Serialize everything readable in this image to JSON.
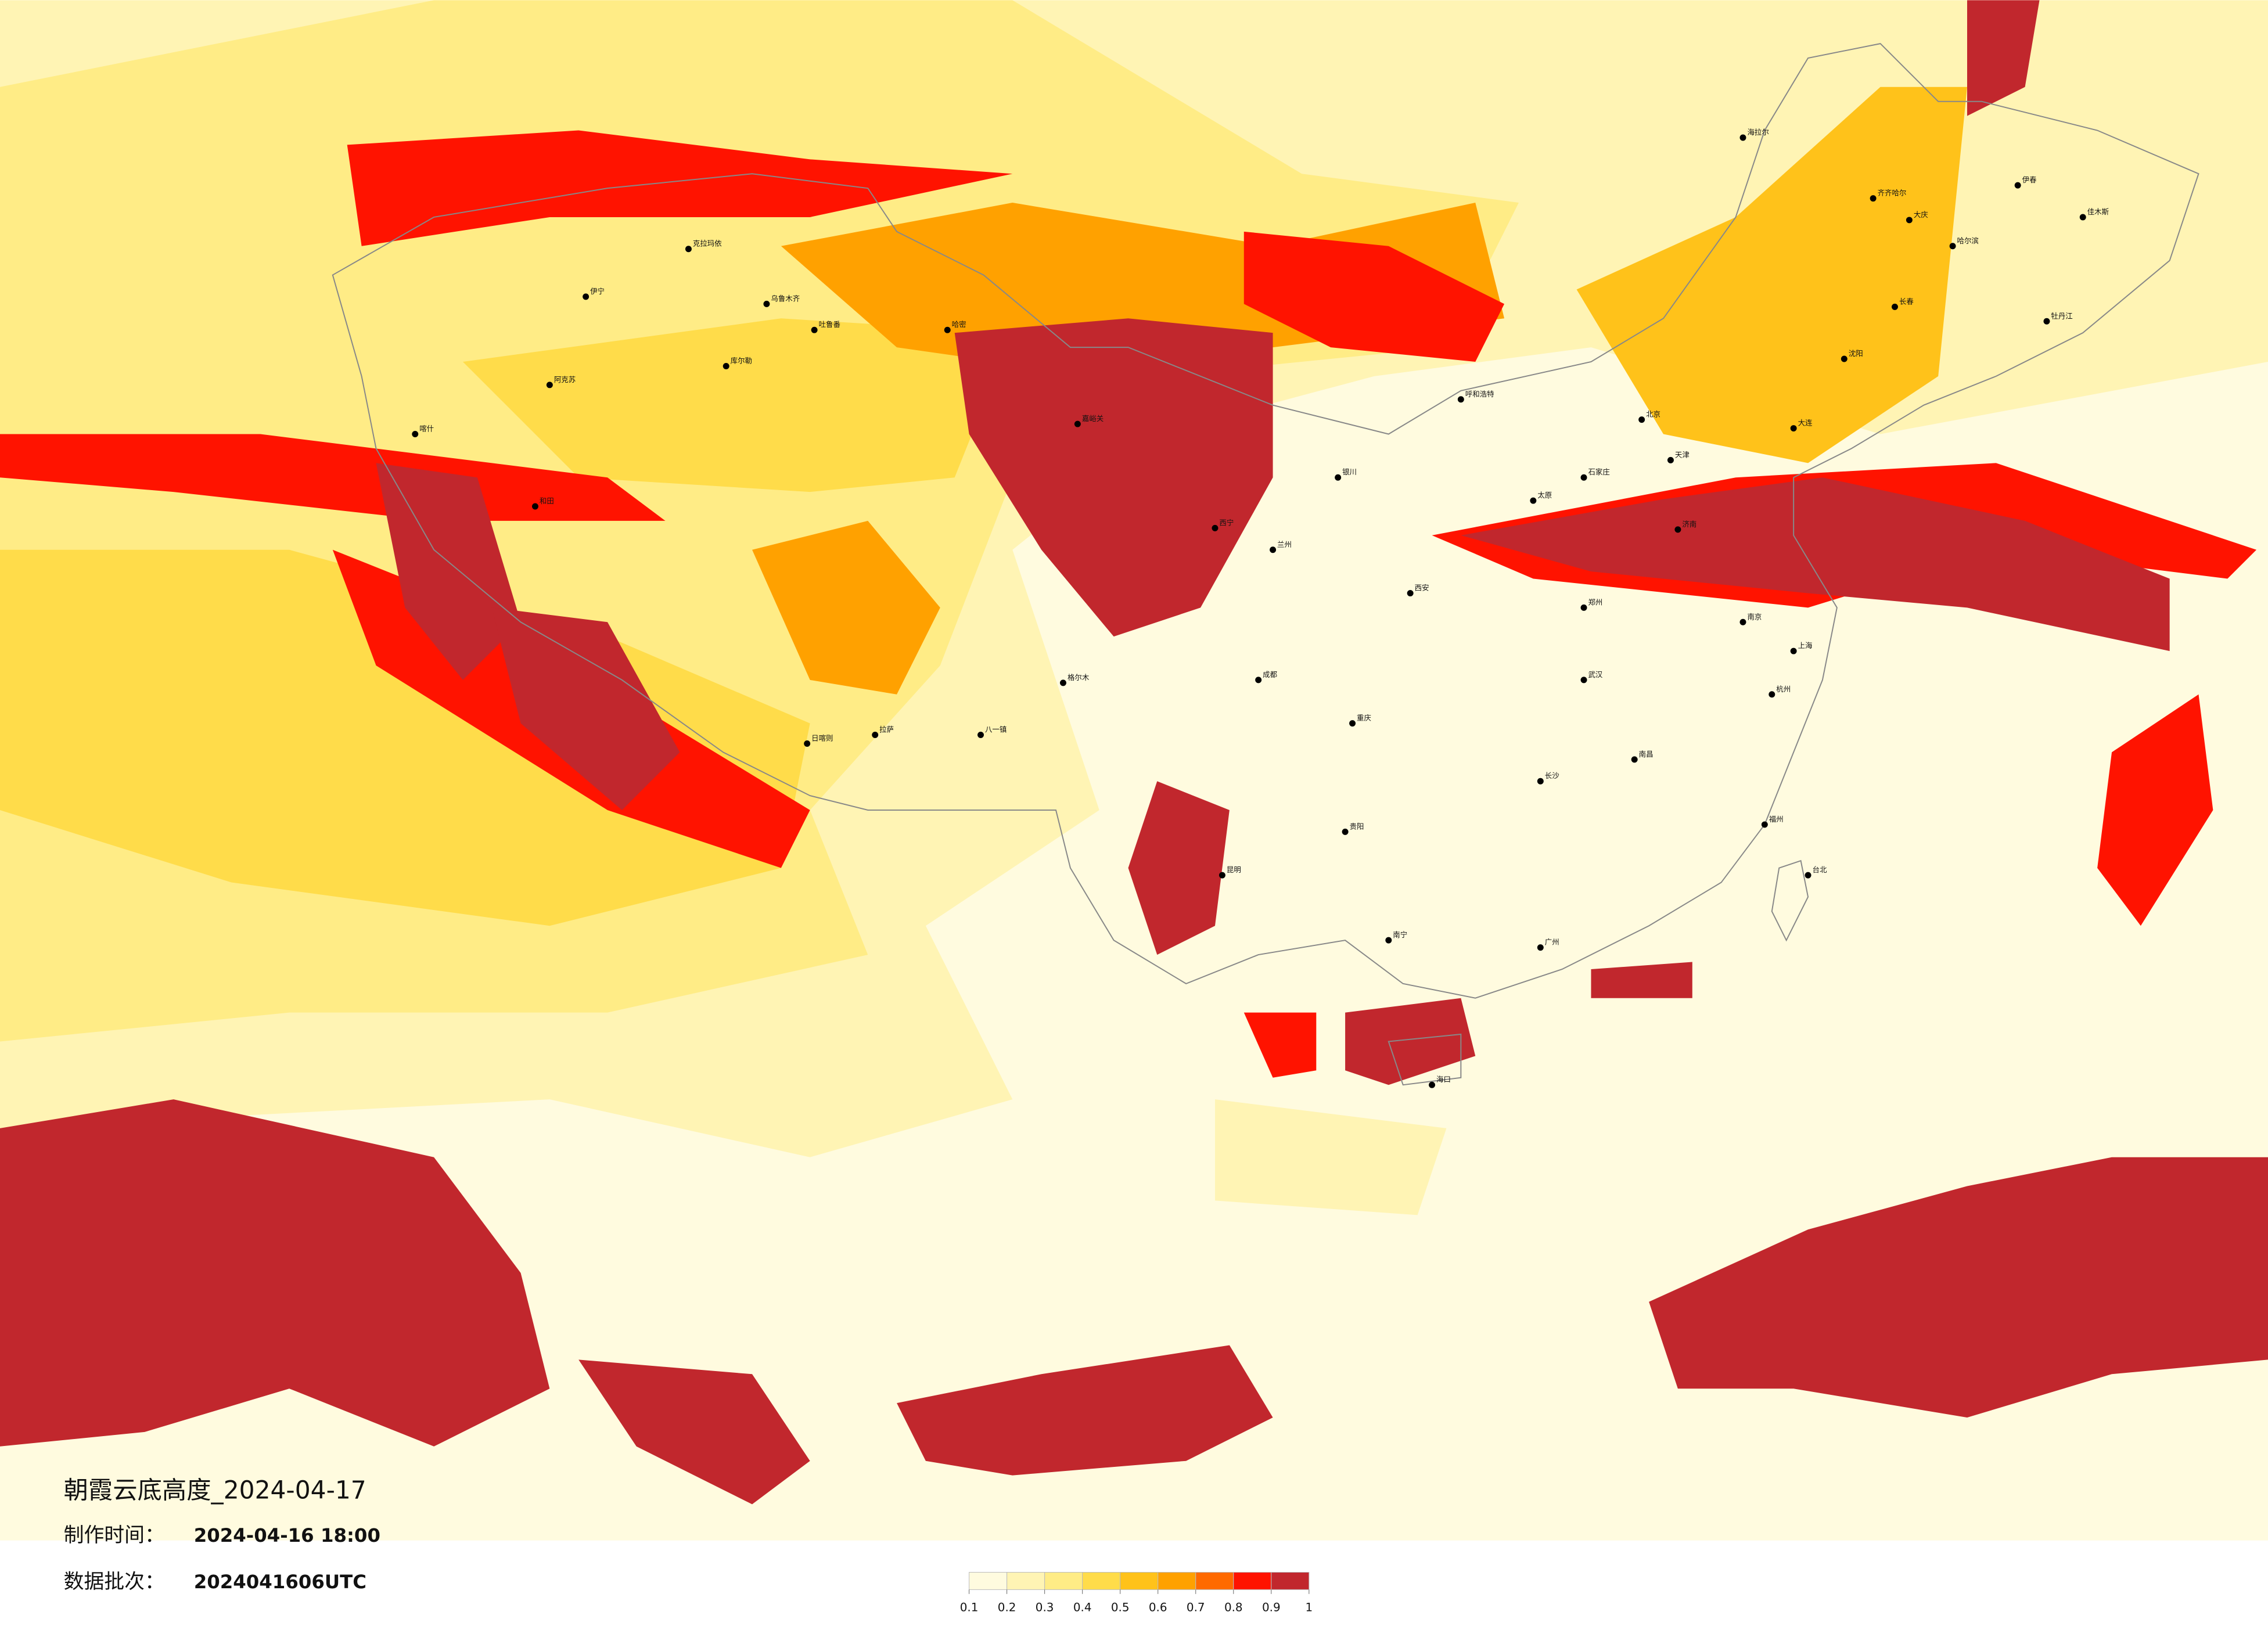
{
  "title": "朝霞云底高度_2024-04-17",
  "made_label": "制作时间：",
  "made_time": "2024-04-16 18:00",
  "batch_label": "数据批次：",
  "batch": "2024041606UTC",
  "colorbar": {
    "ticks": [
      0.1,
      0.2,
      0.3,
      0.4,
      0.5,
      0.6,
      0.7,
      0.8,
      0.9,
      1
    ],
    "colors": [
      "#fffbdf",
      "#fff4b4",
      "#ffec86",
      "#ffdc4a",
      "#ffc21a",
      "#ffa100",
      "#ff6a00",
      "#ff1300",
      "#c1272d"
    ]
  },
  "cities": [
    "伊宁",
    "克拉玛依",
    "乌鲁木齐",
    "吐鲁番",
    "库尔勒",
    "阿克苏",
    "喀什",
    "和田",
    "哈密",
    "嘉峪关",
    "格尔木",
    "日喀则",
    "拉萨",
    "八一镇",
    "海拉尔",
    "齐齐哈尔",
    "大庆",
    "哈尔滨",
    "伊春",
    "佳木斯",
    "牡丹江",
    "长春",
    "沈阳",
    "大连",
    "呼和浩特",
    "北京",
    "天津",
    "石家庄",
    "太原",
    "济南",
    "郑州",
    "西安",
    "兰州",
    "西宁",
    "银川",
    "成都",
    "重庆",
    "武汉",
    "南京",
    "上海",
    "杭州",
    "南昌",
    "长沙",
    "福州",
    "贵阳",
    "昆明",
    "南宁",
    "广州",
    "海口",
    "台北"
  ]
}
